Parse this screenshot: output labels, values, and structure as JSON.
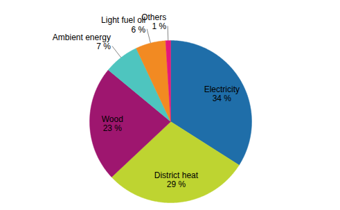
{
  "chart_data": {
    "type": "pie",
    "categories": [
      "Electricity",
      "District heat",
      "Wood",
      "Ambient energy",
      "Light fuel oil",
      "Others"
    ],
    "values": [
      34,
      29,
      23,
      7,
      6,
      1
    ],
    "value_labels": [
      "34 %",
      "29 %",
      "23 %",
      "7 %",
      "6 %",
      "1 %"
    ],
    "colors": [
      "#1f6ea9",
      "#bed431",
      "#9e166f",
      "#4ec5bf",
      "#f28a22",
      "#e4187b"
    ],
    "data_labels": true
  }
}
